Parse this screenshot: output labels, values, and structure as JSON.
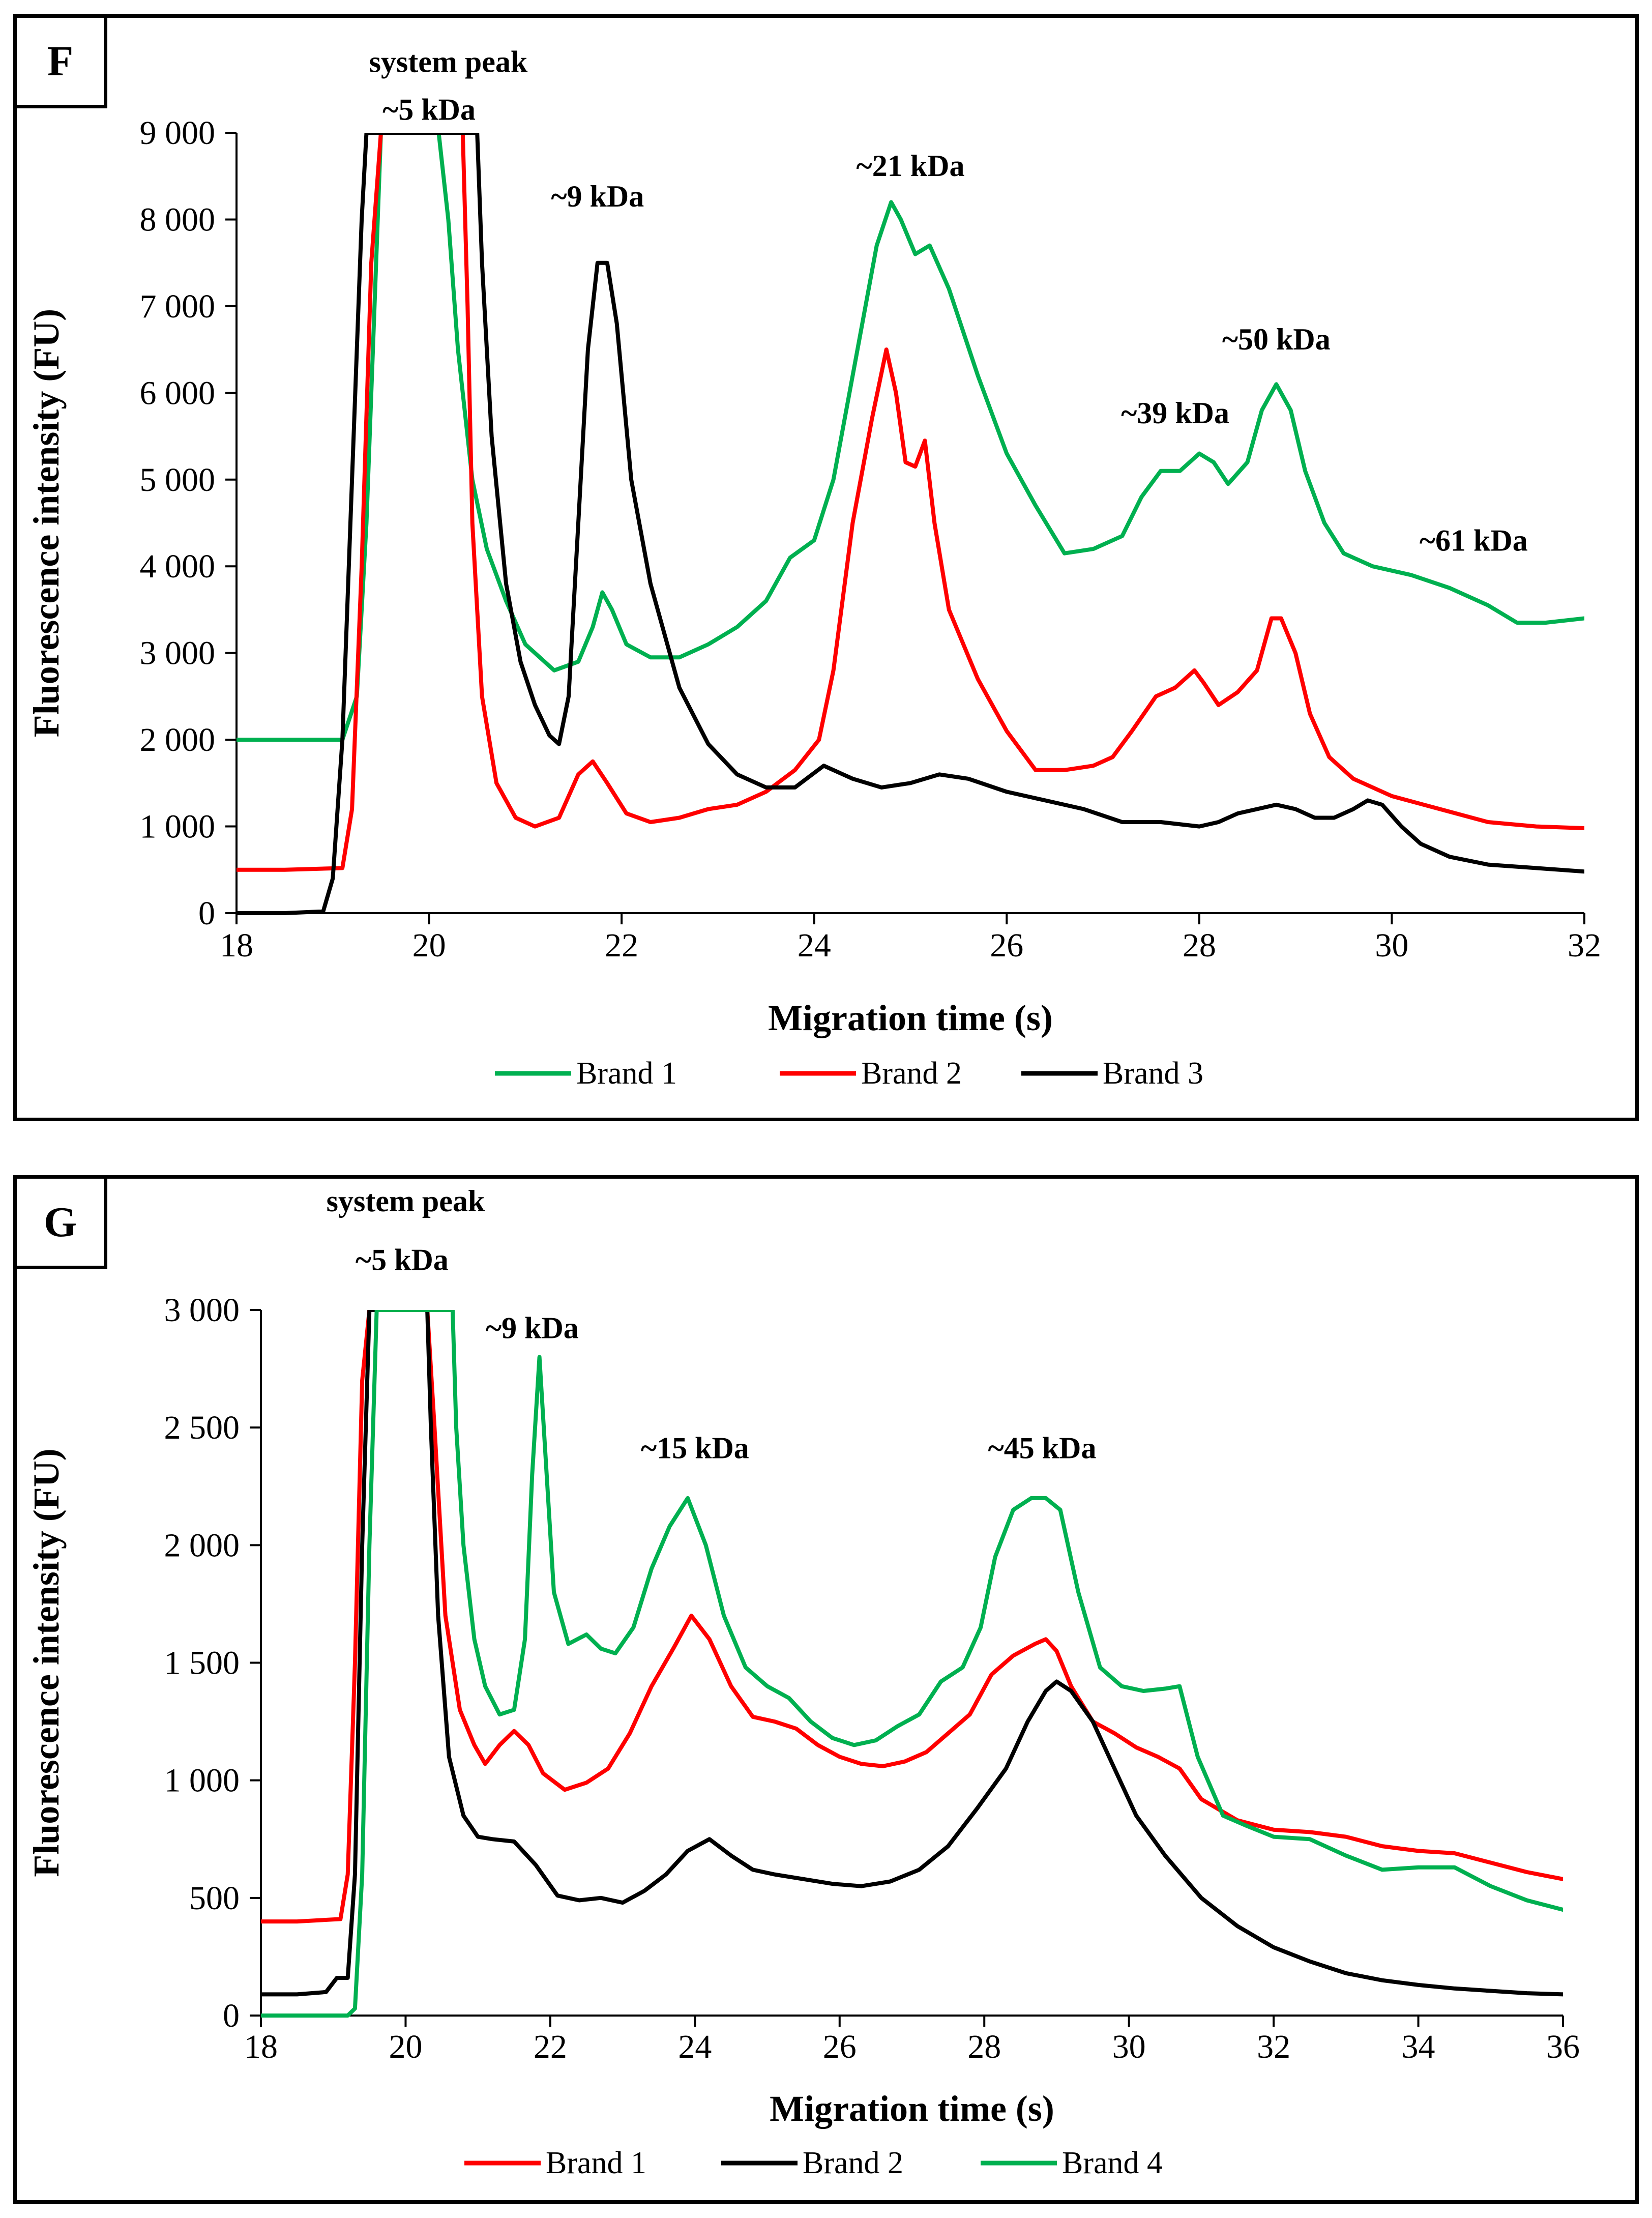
{
  "chart_data": [
    {
      "panel_label": "F",
      "type": "line",
      "xlabel": "Migration time (s)",
      "ylabel": "Fluorescence intensity (FU)",
      "xlim": [
        18,
        32
      ],
      "ylim": [
        0,
        9000
      ],
      "x_ticks": [
        18,
        20,
        22,
        24,
        26,
        28,
        30,
        32
      ],
      "x_tick_labels": [
        "18",
        "20",
        "22",
        "24",
        "26",
        "28",
        "30",
        "32"
      ],
      "y_ticks": [
        0,
        1000,
        2000,
        3000,
        4000,
        5000,
        6000,
        7000,
        8000,
        9000
      ],
      "y_tick_labels": [
        "0",
        "1 000",
        "2 000",
        "3 000",
        "4 000",
        "5 000",
        "6 000",
        "7 000",
        "8 000",
        "9 000"
      ],
      "annotations": [
        {
          "text": "system peak",
          "x": 20.2,
          "y": 9700
        },
        {
          "text": "~5 kDa",
          "x": 20.0,
          "y": 9150
        },
        {
          "text": "~9 kDa",
          "x": 21.75,
          "y": 8150
        },
        {
          "text": "~21 kDa",
          "x": 25.0,
          "y": 8500
        },
        {
          "text": "~50 kDa",
          "x": 28.8,
          "y": 6500
        },
        {
          "text": "~39 kDa",
          "x": 27.75,
          "y": 5650
        },
        {
          "text": "~61 kDa",
          "x": 30.85,
          "y": 4180
        }
      ],
      "legend_position": "bottom",
      "series": [
        {
          "name": "Brand 1",
          "color": "#00b050",
          "x": [
            18,
            18.5,
            19.1,
            19.25,
            19.35,
            19.45,
            19.5,
            20.1,
            20.2,
            20.3,
            20.45,
            20.6,
            20.8,
            21.0,
            21.3,
            21.55,
            21.7,
            21.8,
            21.9,
            22.05,
            22.3,
            22.6,
            22.9,
            23.2,
            23.5,
            23.75,
            24.0,
            24.2,
            24.45,
            24.65,
            24.8,
            24.9,
            25.05,
            25.2,
            25.4,
            25.7,
            26.0,
            26.3,
            26.6,
            26.9,
            27.2,
            27.4,
            27.6,
            27.8,
            28.0,
            28.15,
            28.3,
            28.5,
            28.65,
            28.8,
            28.95,
            29.1,
            29.3,
            29.5,
            29.8,
            30.2,
            30.6,
            31.0,
            31.3,
            31.6,
            32.0
          ],
          "y": [
            2000,
            2000,
            2000,
            2500,
            4500,
            7500,
            9000,
            9000,
            8000,
            6500,
            5000,
            4200,
            3600,
            3100,
            2800,
            2900,
            3300,
            3700,
            3500,
            3100,
            2950,
            2950,
            3100,
            3300,
            3600,
            4100,
            4300,
            5000,
            6500,
            7700,
            8200,
            8000,
            7600,
            7700,
            7200,
            6200,
            5300,
            4700,
            4150,
            4200,
            4350,
            4800,
            5100,
            5100,
            5300,
            5200,
            4950,
            5200,
            5800,
            6100,
            5800,
            5100,
            4500,
            4150,
            4000,
            3900,
            3750,
            3550,
            3350,
            3350,
            3400
          ]
        },
        {
          "name": "Brand 2",
          "color": "#ff0000",
          "x": [
            18,
            18.5,
            19.1,
            19.2,
            19.3,
            19.4,
            19.5,
            20.35,
            20.4,
            20.45,
            20.55,
            20.7,
            20.9,
            21.1,
            21.35,
            21.55,
            21.7,
            21.85,
            22.05,
            22.3,
            22.6,
            22.9,
            23.2,
            23.5,
            23.8,
            24.05,
            24.2,
            24.4,
            24.6,
            24.75,
            24.85,
            24.95,
            25.05,
            25.15,
            25.25,
            25.4,
            25.7,
            26.0,
            26.3,
            26.6,
            26.9,
            27.1,
            27.3,
            27.55,
            27.75,
            27.95,
            28.05,
            28.2,
            28.4,
            28.6,
            28.75,
            28.85,
            29.0,
            29.15,
            29.35,
            29.6,
            30.0,
            30.5,
            31.0,
            31.5,
            32.0
          ],
          "y": [
            500,
            500,
            520,
            1200,
            4000,
            7500,
            9000,
            9000,
            7000,
            4500,
            2500,
            1500,
            1100,
            1000,
            1100,
            1600,
            1750,
            1500,
            1150,
            1050,
            1100,
            1200,
            1250,
            1400,
            1650,
            2000,
            2800,
            4500,
            5700,
            6500,
            6000,
            5200,
            5150,
            5450,
            4500,
            3500,
            2700,
            2100,
            1650,
            1650,
            1700,
            1800,
            2100,
            2500,
            2600,
            2800,
            2650,
            2400,
            2550,
            2800,
            3400,
            3400,
            3000,
            2300,
            1800,
            1550,
            1350,
            1200,
            1050,
            1000,
            980
          ]
        },
        {
          "name": "Brand 3",
          "color": "#000000",
          "x": [
            18,
            18.5,
            18.9,
            19.0,
            19.1,
            19.2,
            19.3,
            19.35,
            20.5,
            20.55,
            20.65,
            20.8,
            20.95,
            21.1,
            21.25,
            21.35,
            21.45,
            21.55,
            21.65,
            21.75,
            21.85,
            21.95,
            22.1,
            22.3,
            22.6,
            22.9,
            23.2,
            23.5,
            23.8,
            24.1,
            24.4,
            24.7,
            25.0,
            25.3,
            25.6,
            26.0,
            26.4,
            26.8,
            27.2,
            27.6,
            28.0,
            28.2,
            28.4,
            28.6,
            28.8,
            29.0,
            29.2,
            29.4,
            29.6,
            29.75,
            29.9,
            30.1,
            30.3,
            30.6,
            31.0,
            31.5,
            32.0
          ],
          "y": [
            0,
            0,
            20,
            400,
            2000,
            5000,
            8000,
            9000,
            9000,
            7500,
            5500,
            3800,
            2900,
            2400,
            2050,
            1950,
            2500,
            4500,
            6500,
            7500,
            7500,
            6800,
            5000,
            3800,
            2600,
            1950,
            1600,
            1450,
            1450,
            1700,
            1550,
            1450,
            1500,
            1600,
            1550,
            1400,
            1300,
            1200,
            1050,
            1050,
            1000,
            1050,
            1150,
            1200,
            1250,
            1200,
            1100,
            1100,
            1200,
            1300,
            1250,
            1000,
            800,
            650,
            560,
            520,
            480
          ]
        }
      ]
    },
    {
      "panel_label": "G",
      "type": "line",
      "xlabel": "Migration time (s)",
      "ylabel": "Fluorescence intensity (FU)",
      "xlim": [
        18,
        36
      ],
      "ylim": [
        0,
        3000
      ],
      "x_ticks": [
        18,
        20,
        22,
        24,
        26,
        28,
        30,
        32,
        34,
        36
      ],
      "x_tick_labels": [
        "18",
        "20",
        "22",
        "24",
        "26",
        "28",
        "30",
        "32",
        "34",
        "36"
      ],
      "y_ticks": [
        0,
        500,
        1000,
        1500,
        2000,
        2500,
        3000
      ],
      "y_tick_labels": [
        "0",
        "500",
        "1 000",
        "1 500",
        "2 000",
        "2 500",
        "3 000"
      ],
      "annotations": [
        {
          "text": "system peak",
          "x": 20.0,
          "y": 3420
        },
        {
          "text": "~5 kDa",
          "x": 19.95,
          "y": 3170
        },
        {
          "text": "~9 kDa",
          "x": 21.75,
          "y": 2880
        },
        {
          "text": "~15 kDa",
          "x": 24.0,
          "y": 2370
        },
        {
          "text": "~45 kDa",
          "x": 28.8,
          "y": 2370
        }
      ],
      "legend_position": "bottom",
      "series": [
        {
          "name": "Brand 1",
          "color": "#ff0000",
          "x": [
            18,
            18.5,
            19.1,
            19.2,
            19.3,
            19.4,
            19.5,
            20.3,
            20.4,
            20.55,
            20.75,
            20.95,
            21.1,
            21.3,
            21.5,
            21.7,
            21.9,
            22.2,
            22.5,
            22.8,
            23.1,
            23.4,
            23.7,
            23.95,
            24.2,
            24.5,
            24.8,
            25.1,
            25.4,
            25.7,
            26.0,
            26.3,
            26.6,
            26.9,
            27.2,
            27.5,
            27.8,
            28.1,
            28.4,
            28.7,
            28.85,
            29.0,
            29.2,
            29.5,
            29.8,
            30.1,
            30.4,
            30.7,
            31.0,
            31.5,
            32.0,
            32.5,
            33.0,
            33.5,
            34.0,
            34.5,
            35.0,
            35.5,
            36.0
          ],
          "y": [
            400,
            400,
            410,
            600,
            1500,
            2700,
            3000,
            3000,
            2500,
            1700,
            1300,
            1150,
            1070,
            1150,
            1210,
            1150,
            1030,
            960,
            990,
            1050,
            1200,
            1400,
            1560,
            1700,
            1600,
            1400,
            1270,
            1250,
            1220,
            1150,
            1100,
            1070,
            1060,
            1080,
            1120,
            1200,
            1280,
            1450,
            1530,
            1580,
            1600,
            1550,
            1400,
            1250,
            1200,
            1140,
            1100,
            1050,
            920,
            830,
            790,
            780,
            760,
            720,
            700,
            690,
            650,
            610,
            580
          ]
        },
        {
          "name": "Brand 2",
          "color": "#000000",
          "x": [
            18,
            18.5,
            18.9,
            19.05,
            19.2,
            19.3,
            19.4,
            19.5,
            20.3,
            20.35,
            20.45,
            20.6,
            20.8,
            21.0,
            21.2,
            21.5,
            21.8,
            22.1,
            22.4,
            22.7,
            23.0,
            23.3,
            23.6,
            23.9,
            24.2,
            24.5,
            24.8,
            25.1,
            25.5,
            25.9,
            26.3,
            26.7,
            27.1,
            27.5,
            27.9,
            28.3,
            28.6,
            28.85,
            29.0,
            29.2,
            29.5,
            29.8,
            30.1,
            30.5,
            31.0,
            31.5,
            32.0,
            32.5,
            33.0,
            33.5,
            34.0,
            34.5,
            35.0,
            35.5,
            36.0
          ],
          "y": [
            90,
            90,
            100,
            160,
            160,
            600,
            2000,
            3000,
            3000,
            2500,
            1700,
            1100,
            850,
            760,
            750,
            740,
            640,
            510,
            490,
            500,
            480,
            530,
            600,
            700,
            750,
            680,
            620,
            600,
            580,
            560,
            550,
            570,
            620,
            720,
            880,
            1050,
            1250,
            1380,
            1420,
            1380,
            1250,
            1050,
            850,
            680,
            500,
            380,
            290,
            230,
            180,
            150,
            130,
            115,
            105,
            95,
            90
          ]
        },
        {
          "name": "Brand 4",
          "color": "#00b050",
          "x": [
            18,
            18.5,
            19.2,
            19.3,
            19.4,
            19.5,
            19.6,
            20.65,
            20.7,
            20.8,
            20.95,
            21.1,
            21.3,
            21.5,
            21.65,
            21.75,
            21.85,
            21.95,
            22.05,
            22.25,
            22.5,
            22.7,
            22.9,
            23.15,
            23.4,
            23.65,
            23.9,
            24.15,
            24.4,
            24.7,
            25.0,
            25.3,
            25.6,
            25.9,
            26.2,
            26.5,
            26.8,
            27.1,
            27.4,
            27.7,
            27.95,
            28.15,
            28.4,
            28.65,
            28.85,
            29.05,
            29.3,
            29.6,
            29.9,
            30.2,
            30.5,
            30.7,
            30.95,
            31.3,
            31.6,
            32.0,
            32.5,
            33.0,
            33.5,
            34.0,
            34.5,
            35.0,
            35.5,
            36.0
          ],
          "y": [
            0,
            0,
            0,
            30,
            600,
            2000,
            3000,
            3000,
            2500,
            2000,
            1600,
            1400,
            1280,
            1300,
            1600,
            2300,
            2800,
            2300,
            1800,
            1580,
            1620,
            1560,
            1540,
            1650,
            1900,
            2080,
            2200,
            2000,
            1700,
            1480,
            1400,
            1350,
            1250,
            1180,
            1150,
            1170,
            1230,
            1280,
            1420,
            1480,
            1650,
            1950,
            2150,
            2200,
            2200,
            2150,
            1800,
            1480,
            1400,
            1380,
            1390,
            1400,
            1100,
            850,
            810,
            760,
            750,
            680,
            620,
            630,
            630,
            550,
            490,
            450
          ]
        }
      ]
    }
  ]
}
